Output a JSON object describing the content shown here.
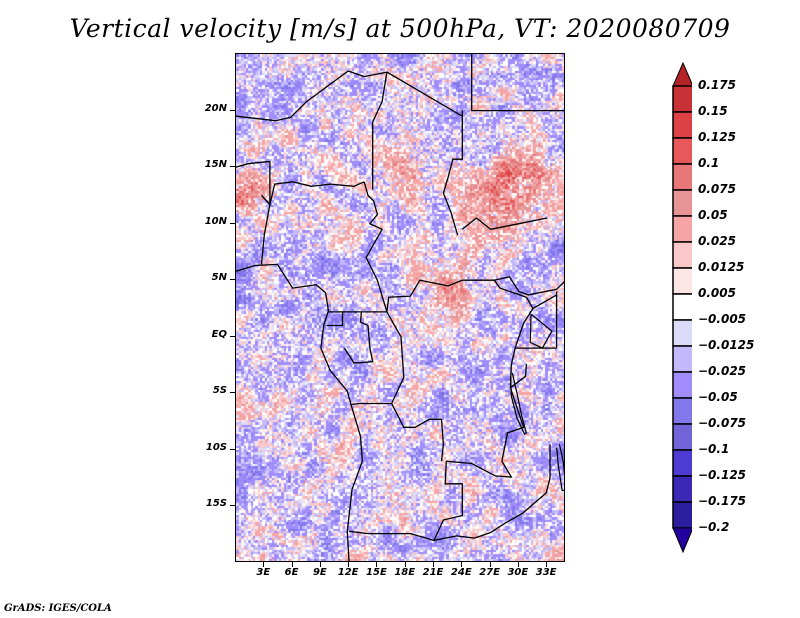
{
  "title": "Vertical velocity [m/s] at 500hPa, VT: 2020080709",
  "footer": "GrADS: IGES/COLA",
  "map": {
    "variable": "Vertical velocity",
    "units": "m/s",
    "level": "500hPa",
    "valid_time": "2020080709",
    "lon_range": [
      0,
      35
    ],
    "lat_range": [
      -20,
      25
    ],
    "lat_ticks": [
      {
        "value": 20,
        "label": "20N"
      },
      {
        "value": 15,
        "label": "15N"
      },
      {
        "value": 10,
        "label": "10N"
      },
      {
        "value": 5,
        "label": "5N"
      },
      {
        "value": 0,
        "label": "EQ"
      },
      {
        "value": -5,
        "label": "5S"
      },
      {
        "value": -10,
        "label": "10S"
      },
      {
        "value": -15,
        "label": "15S"
      }
    ],
    "lon_ticks": [
      {
        "value": 3,
        "label": "3E"
      },
      {
        "value": 6,
        "label": "6E"
      },
      {
        "value": 9,
        "label": "9E"
      },
      {
        "value": 12,
        "label": "12E"
      },
      {
        "value": 15,
        "label": "15E"
      },
      {
        "value": 18,
        "label": "18E"
      },
      {
        "value": 21,
        "label": "21E"
      },
      {
        "value": 24,
        "label": "24E"
      },
      {
        "value": 27,
        "label": "27E"
      },
      {
        "value": 30,
        "label": "30E"
      },
      {
        "value": 33,
        "label": "33E"
      }
    ],
    "border_color": "#000000"
  },
  "colorbar": {
    "levels": [
      "0.175",
      "0.15",
      "0.125",
      "0.1",
      "0.075",
      "0.05",
      "0.025",
      "0.0125",
      "0.005",
      "-0.005",
      "-0.0125",
      "-0.025",
      "-0.05",
      "-0.075",
      "-0.1",
      "-0.125",
      "-0.175",
      "-0.2"
    ],
    "colors": [
      "#b42328",
      "#c83237",
      "#dc4146",
      "#e6585a",
      "#e87878",
      "#e69496",
      "#f5a5a5",
      "#fac8c8",
      "#fde6e6",
      "#ffffff",
      "#dcdcfa",
      "#c3b9fa",
      "#a08cfa",
      "#8278eb",
      "#7264d8",
      "#4e3cd2",
      "#3c28b4",
      "#2d1ea0",
      "#2300a0"
    ],
    "top_arrow_color": "#b42328",
    "bottom_arrow_color": "#2300a0"
  }
}
